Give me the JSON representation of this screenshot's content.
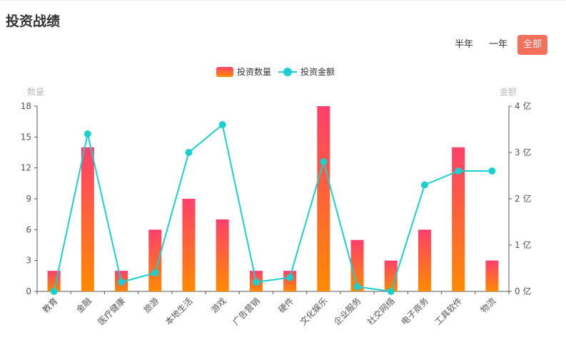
{
  "page": {
    "title": "投资战绩"
  },
  "range_tabs": [
    {
      "label": "半年",
      "active": false
    },
    {
      "label": "一年",
      "active": false
    },
    {
      "label": "全部",
      "active": true
    }
  ],
  "colors": {
    "bar_top": "#ff3f6c",
    "bar_bottom": "#ff8a00",
    "line": "#1ccfcf",
    "active_tab": "#f3705a",
    "axis_name": "#bbbbbb",
    "axis_label": "#555555"
  },
  "chart_data": {
    "type": "bar",
    "categories": [
      "教育",
      "金融",
      "医疗健康",
      "旅游",
      "本地生活",
      "游戏",
      "广告营销",
      "硬件",
      "文化娱乐",
      "企业服务",
      "社交网络",
      "电子商务",
      "工具软件",
      "物流"
    ],
    "series": [
      {
        "name": "投资数量",
        "type": "bar",
        "axis": "left",
        "values": [
          2,
          14,
          2,
          6,
          9,
          7,
          2,
          2,
          18,
          5,
          3,
          6,
          14,
          3
        ]
      },
      {
        "name": "投资金额",
        "type": "line",
        "axis": "right",
        "values": [
          0,
          3.4,
          0.2,
          0.4,
          3.0,
          3.6,
          0.2,
          0.3,
          2.8,
          0.1,
          0,
          2.3,
          2.6,
          2.6
        ]
      }
    ],
    "left_axis": {
      "name": "数量",
      "ylim": [
        0,
        18
      ],
      "ticks": [
        "0",
        "3",
        "6",
        "9",
        "12",
        "15",
        "18"
      ]
    },
    "right_axis": {
      "name": "金额",
      "ylim": [
        0,
        4
      ],
      "ticks": [
        "0 亿",
        "1 亿",
        "2 亿",
        "3 亿",
        "4 亿"
      ]
    },
    "legend": "top-center",
    "grid": false
  }
}
